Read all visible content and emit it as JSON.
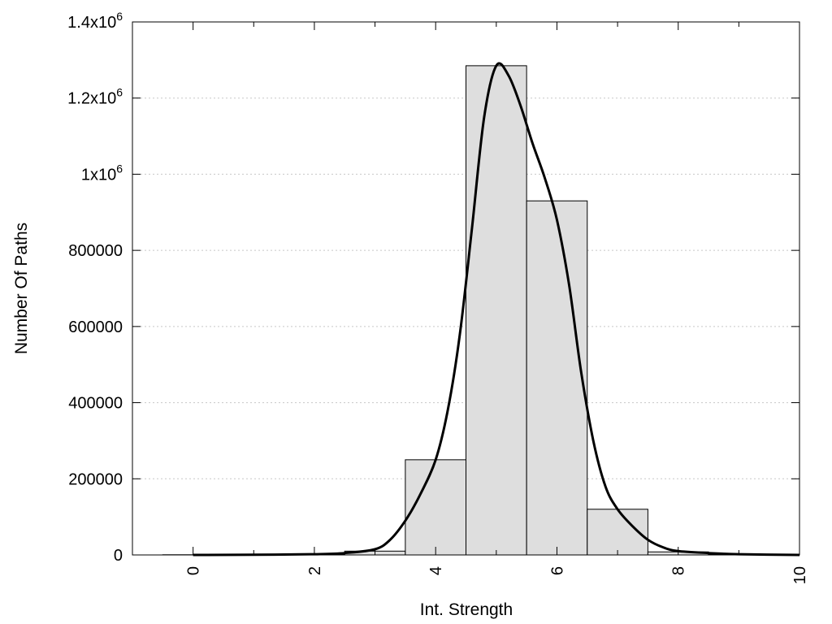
{
  "chart_data": {
    "type": "bar",
    "title": "",
    "xlabel": "Int. Strength",
    "ylabel": "Number Of Paths",
    "xlim": [
      -1,
      10
    ],
    "ylim": [
      0,
      1400000
    ],
    "grid": "horizontal-dotted",
    "x_ticks": [
      {
        "value": 0,
        "label": "0"
      },
      {
        "value": 2,
        "label": "2"
      },
      {
        "value": 4,
        "label": "4"
      },
      {
        "value": 6,
        "label": "6"
      },
      {
        "value": 8,
        "label": "8"
      },
      {
        "value": 10,
        "label": "10"
      }
    ],
    "y_ticks": [
      {
        "value": 0,
        "label": "0",
        "sup": ""
      },
      {
        "value": 200000,
        "label": "200000",
        "sup": ""
      },
      {
        "value": 400000,
        "label": "400000",
        "sup": ""
      },
      {
        "value": 600000,
        "label": "600000",
        "sup": ""
      },
      {
        "value": 800000,
        "label": "800000",
        "sup": ""
      },
      {
        "value": 1000000,
        "label": "1x10",
        "sup": "6"
      },
      {
        "value": 1200000,
        "label": "1.2x10",
        "sup": "6"
      },
      {
        "value": 1400000,
        "label": "1.4x10",
        "sup": "6"
      }
    ],
    "bars": {
      "fill": "#dedede",
      "stroke": "#000000",
      "x": [
        0,
        1,
        2,
        3,
        4,
        5,
        6,
        7,
        8,
        9
      ],
      "values": [
        500,
        1000,
        1500,
        10000,
        250000,
        1285000,
        930000,
        120000,
        8000,
        2000
      ]
    },
    "series": [
      {
        "type": "line",
        "color": "#000000",
        "x": [
          0,
          1,
          2,
          2.5,
          3,
          3.25,
          3.5,
          3.75,
          4,
          4.2,
          4.4,
          4.6,
          4.8,
          5,
          5.2,
          5.4,
          5.6,
          5.8,
          6,
          6.2,
          6.4,
          6.6,
          6.8,
          7,
          7.25,
          7.5,
          7.75,
          8,
          8.5,
          9,
          10
        ],
        "values": [
          0,
          500,
          2000,
          5000,
          15000,
          40000,
          90000,
          160000,
          250000,
          380000,
          580000,
          860000,
          1150000,
          1285000,
          1260000,
          1180000,
          1080000,
          990000,
          880000,
          710000,
          480000,
          300000,
          180000,
          120000,
          75000,
          40000,
          20000,
          10000,
          5000,
          2000,
          0
        ]
      }
    ]
  }
}
